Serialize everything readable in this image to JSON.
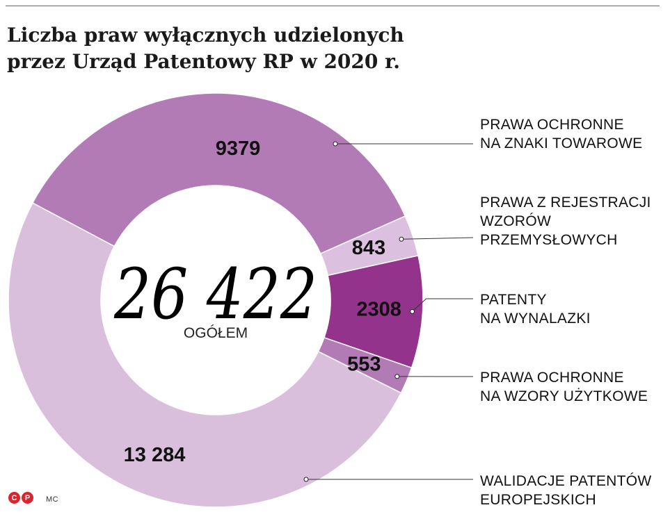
{
  "title_lines": [
    "Liczba praw wyłącznych udzielonych",
    "przez Urząd Patentowy RP w 2020 r."
  ],
  "total": {
    "value": "26 422",
    "label": "OGÓŁEM"
  },
  "legend": [
    {
      "lines": [
        "PRAWA OCHRONNE",
        "NA ZNAKI TOWAROWE"
      ]
    },
    {
      "lines": [
        "PRAWA Z REJESTRACJI",
        "WZORÓW",
        "PRZEMYSŁOWYCH"
      ]
    },
    {
      "lines": [
        "PATENTY",
        "NA WYNALAZKI"
      ]
    },
    {
      "lines": [
        "PRAWA OCHRONNE",
        "NA WZORY UŻYTKOWE"
      ]
    },
    {
      "lines": [
        "WALIDACJE PATENTÓW",
        "EUROPEJSKICH"
      ]
    }
  ],
  "chart_data": {
    "type": "pie",
    "variant": "donut",
    "categories": [
      "PRAWA OCHRONNE NA ZNAKI TOWAROWE",
      "PRAWA Z REJESTRACJI WZORÓW PRZEMYSŁOWYCH",
      "PATENTY NA WYNALAZKI",
      "PRAWA OCHRONNE NA WZORY UŻYTKOWE",
      "WALIDACJE PATENTÓW EUROPEJSKICH"
    ],
    "values": [
      9379,
      843,
      2308,
      553,
      13284
    ],
    "value_labels": [
      "9379",
      "843",
      "2308",
      "553",
      "13 284"
    ],
    "colors": [
      "#b37bb5",
      "#dcc0df",
      "#93338b",
      "#b37bb5",
      "#d9bfdc"
    ],
    "legend_position": "right"
  },
  "footer": {
    "logo_letters": [
      "C",
      "P"
    ],
    "author": "MC"
  }
}
